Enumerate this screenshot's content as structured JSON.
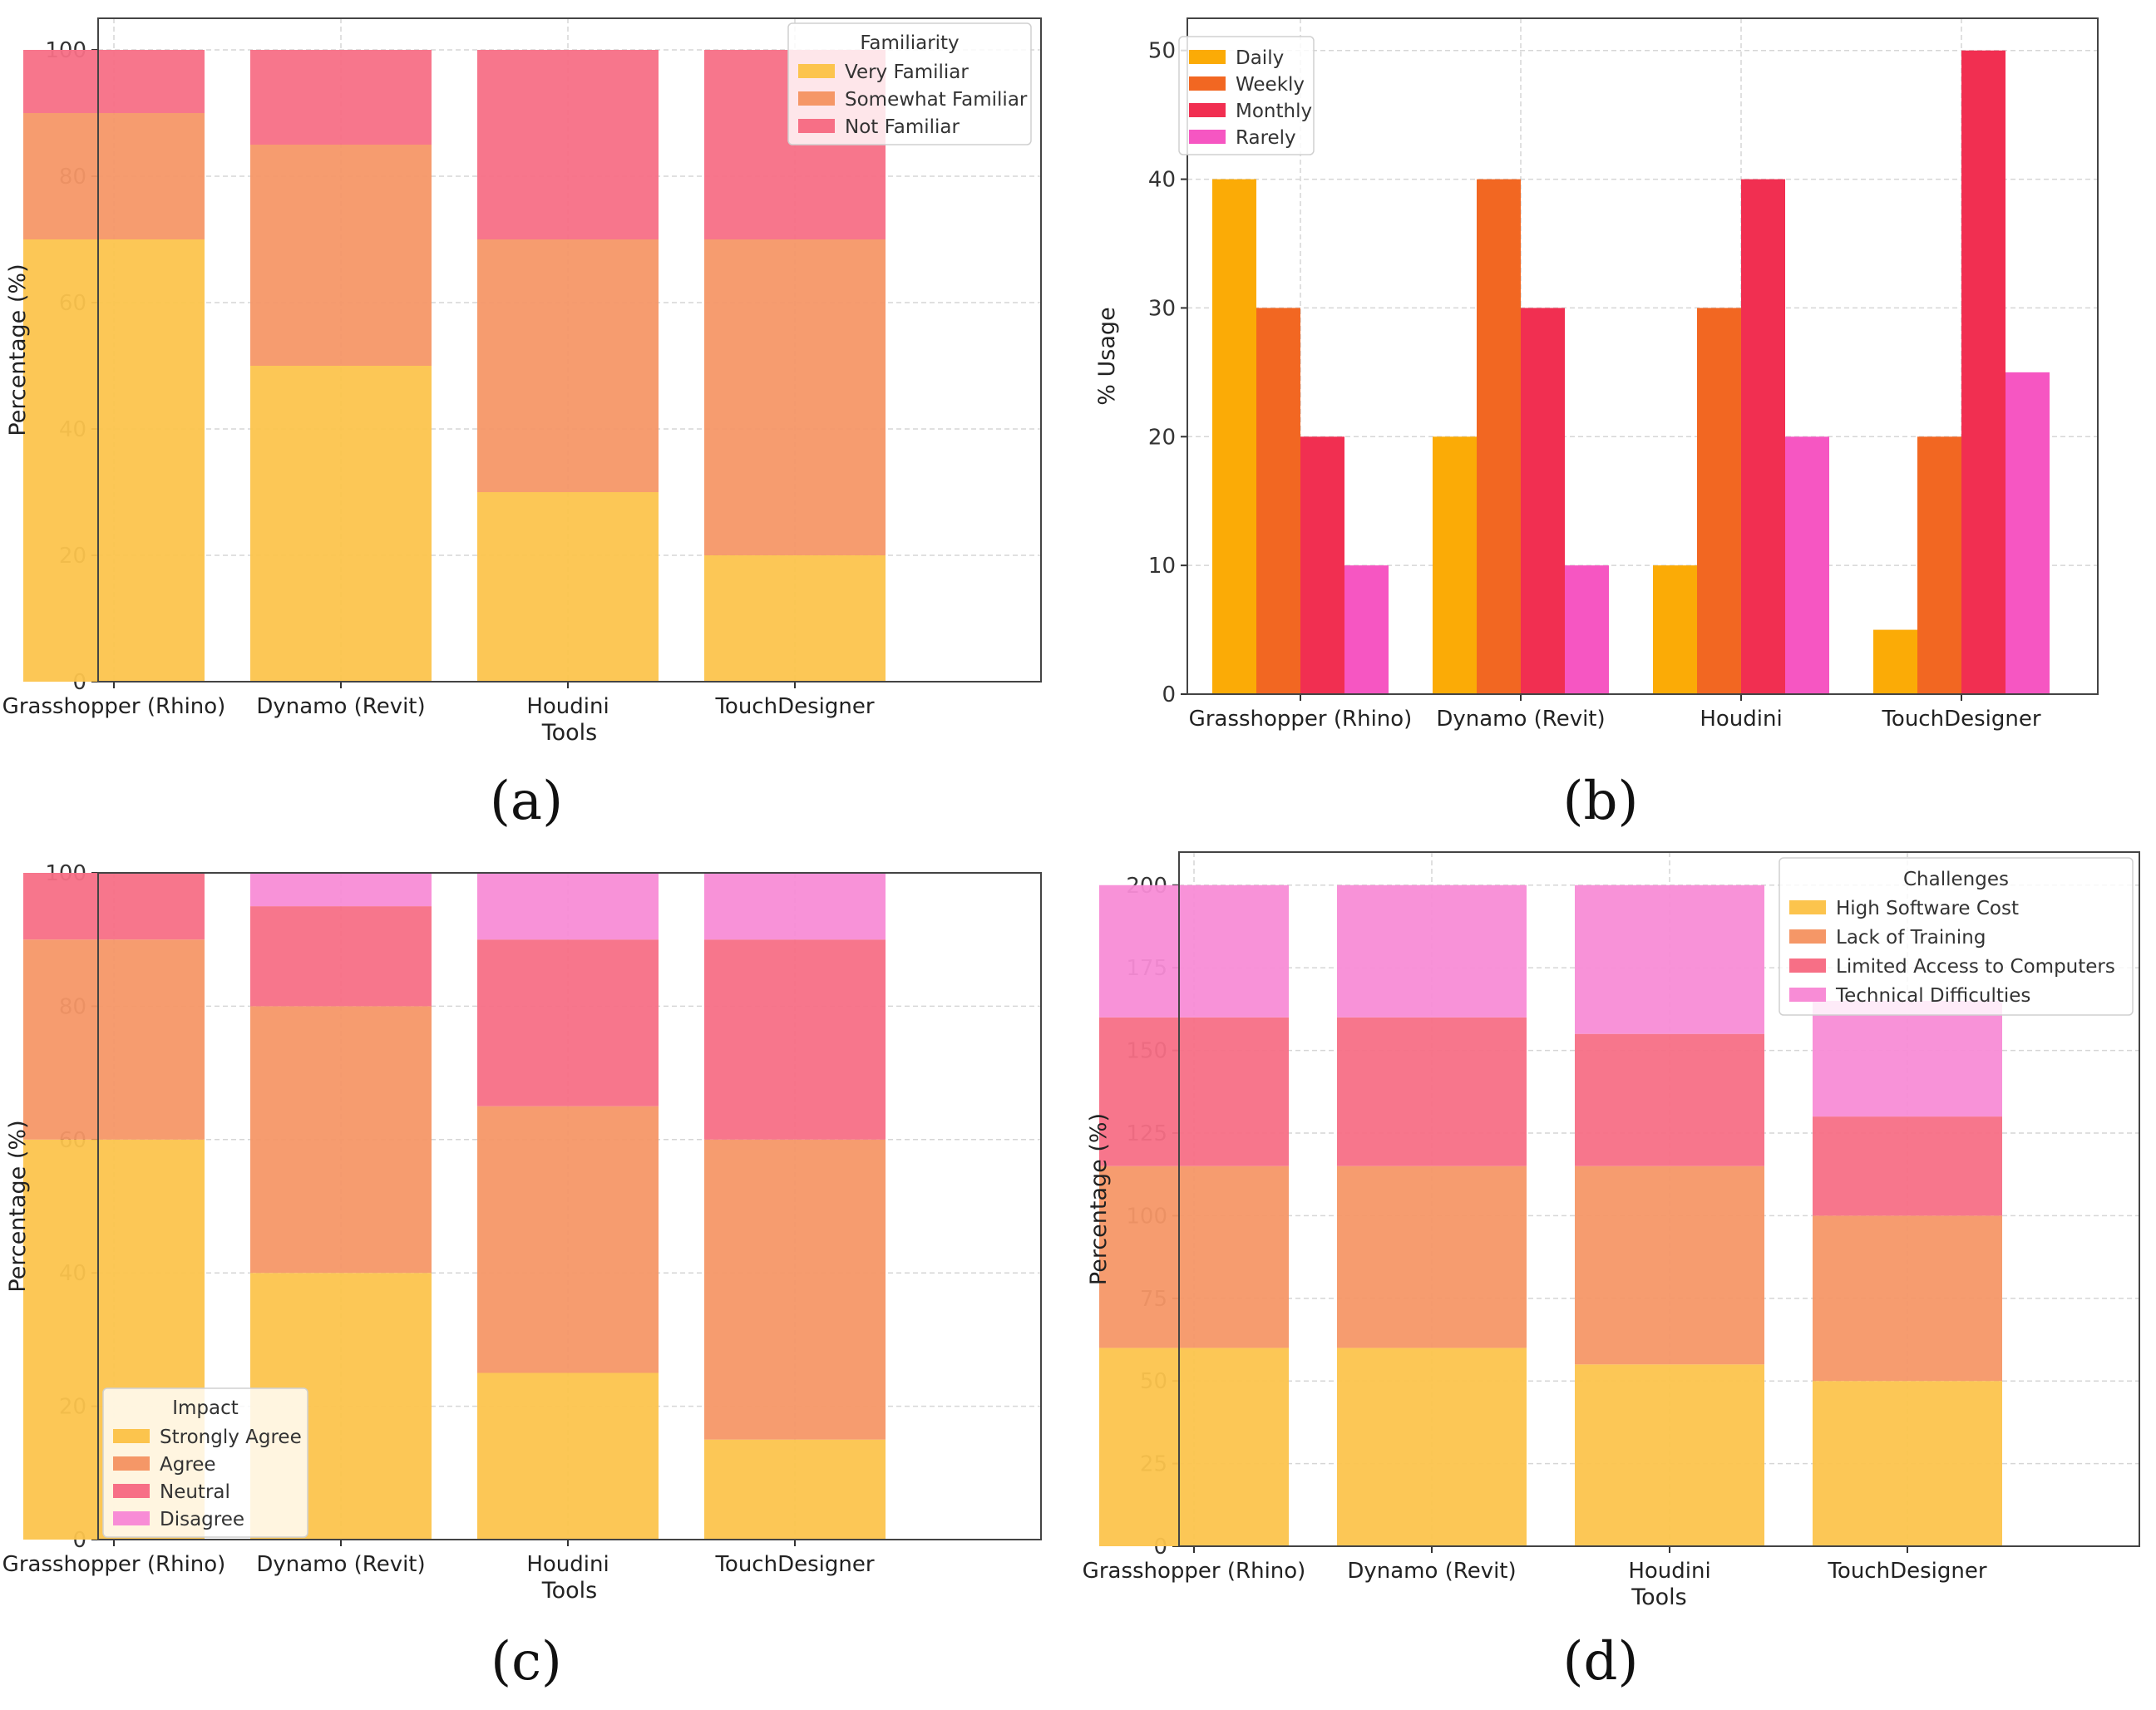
{
  "panels": [
    {
      "id": "a",
      "panel_label": "(a)",
      "chart_data": {
        "type": "bar",
        "stacked": true,
        "categories": [
          "Grasshopper (Rhino)",
          "Dynamo (Revit)",
          "Houdini",
          "TouchDesigner"
        ],
        "series": [
          {
            "name": "Very Familiar",
            "values": [
              70,
              50,
              30,
              20
            ],
            "color": "#fcc44d"
          },
          {
            "name": "Somewhat Familiar",
            "values": [
              20,
              35,
              40,
              50
            ],
            "color": "#f59767"
          },
          {
            "name": "Not Familiar",
            "values": [
              10,
              15,
              30,
              30
            ],
            "color": "#f76f86"
          }
        ],
        "xlabel": "Tools",
        "ylabel": "Percentage (%)",
        "ylim": [
          0,
          105
        ],
        "yticks": [
          0,
          20,
          40,
          60,
          80,
          100
        ],
        "legend_title": "Familiarity",
        "legend_position": "upper right",
        "grid": true
      }
    },
    {
      "id": "b",
      "panel_label": "(b)",
      "chart_data": {
        "type": "bar",
        "stacked": false,
        "categories": [
          "Grasshopper (Rhino)",
          "Dynamo (Revit)",
          "Houdini",
          "TouchDesigner"
        ],
        "series": [
          {
            "name": "Daily",
            "values": [
              40,
              20,
              10,
              5
            ],
            "color": "#fbab06"
          },
          {
            "name": "Weekly",
            "values": [
              30,
              40,
              30,
              20
            ],
            "color": "#f26722"
          },
          {
            "name": "Monthly",
            "values": [
              20,
              30,
              40,
              50
            ],
            "color": "#f12f51"
          },
          {
            "name": "Rarely",
            "values": [
              10,
              10,
              20,
              25
            ],
            "color": "#f656c2"
          }
        ],
        "xlabel": "",
        "ylabel": "% Usage",
        "ylim": [
          0,
          52.5
        ],
        "yticks": [
          0,
          10,
          20,
          30,
          40,
          50
        ],
        "legend_title": "",
        "legend_position": "upper left",
        "grid": true
      }
    },
    {
      "id": "c",
      "panel_label": "(c)",
      "chart_data": {
        "type": "bar",
        "stacked": true,
        "categories": [
          "Grasshopper (Rhino)",
          "Dynamo (Revit)",
          "Houdini",
          "TouchDesigner"
        ],
        "series": [
          {
            "name": "Strongly Agree",
            "values": [
              60,
              40,
              25,
              15
            ],
            "color": "#fcc44d"
          },
          {
            "name": "Agree",
            "values": [
              30,
              40,
              40,
              45
            ],
            "color": "#f59767"
          },
          {
            "name": "Neutral",
            "values": [
              10,
              15,
              25,
              30
            ],
            "color": "#f76f86"
          },
          {
            "name": "Disagree",
            "values": [
              0,
              5,
              10,
              10
            ],
            "color": "#f88cd6"
          }
        ],
        "xlabel": "Tools",
        "ylabel": "Percentage (%)",
        "ylim": [
          0,
          100
        ],
        "yticks": [
          0,
          20,
          40,
          60,
          80,
          100
        ],
        "legend_title": "Impact",
        "legend_position": "lower left",
        "grid": true
      }
    },
    {
      "id": "d",
      "panel_label": "(d)",
      "chart_data": {
        "type": "bar",
        "stacked": true,
        "categories": [
          "Grasshopper (Rhino)",
          "Dynamo (Revit)",
          "Houdini",
          "TouchDesigner"
        ],
        "series": [
          {
            "name": "High Software Cost",
            "values": [
              60,
              60,
              55,
              50
            ],
            "color": "#fcc44d"
          },
          {
            "name": "Lack of Training",
            "values": [
              55,
              55,
              60,
              50
            ],
            "color": "#f59767"
          },
          {
            "name": "Limited Access to Computers",
            "values": [
              45,
              45,
              40,
              30
            ],
            "color": "#f76f86"
          },
          {
            "name": "Technical Difficulties",
            "values": [
              40,
              40,
              45,
              35
            ],
            "color": "#f88cd6"
          }
        ],
        "xlabel": "Tools",
        "ylabel": "Percentage (%)",
        "ylim": [
          0,
          210
        ],
        "yticks": [
          0,
          25,
          50,
          75,
          100,
          125,
          150,
          175,
          200
        ],
        "legend_title": "Challenges",
        "legend_position": "upper right",
        "grid": true
      }
    }
  ]
}
